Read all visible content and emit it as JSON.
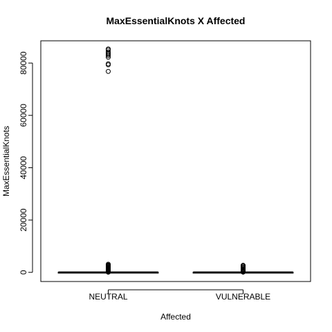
{
  "chart_data": {
    "type": "boxplot",
    "title": "MaxEssentialKnots X Affected",
    "xlabel": "Affected",
    "ylabel": "MaxEssentialKnots",
    "categories": [
      "NEUTRAL",
      "VULNERABLE"
    ],
    "ylim": [
      -3500,
      88500
    ],
    "yticks": [
      0,
      20000,
      40000,
      60000,
      80000
    ],
    "ytick_labels": [
      "0",
      "20000",
      "40000",
      "60000",
      "80000"
    ],
    "grid": false,
    "legend": "none",
    "boxes": [
      {
        "category": "NEUTRAL",
        "q1": 5,
        "median": 10,
        "q3": 20,
        "whisker_low": 0,
        "whisker_high": 45,
        "outliers": [
          85400,
          85000,
          84300,
          83800,
          83300,
          82800,
          82200,
          79700,
          79300,
          76800,
          3100,
          2800,
          2600,
          2400,
          2200,
          2000,
          1800,
          1600,
          1400,
          1200,
          1000,
          800,
          600,
          400,
          250,
          120,
          60
        ]
      },
      {
        "category": "VULNERABLE",
        "q1": 5,
        "median": 10,
        "q3": 20,
        "whisker_low": 0,
        "whisker_high": 45,
        "outliers": [
          2700,
          2400,
          2100,
          1800,
          1500,
          1200,
          900,
          700,
          500,
          300,
          150,
          80
        ]
      }
    ],
    "colors": {
      "stroke": "#000000",
      "background": "#ffffff"
    }
  }
}
